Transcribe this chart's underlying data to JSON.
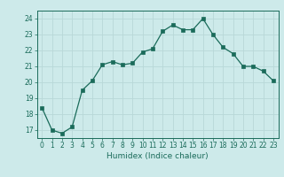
{
  "x": [
    0,
    1,
    2,
    3,
    4,
    5,
    6,
    7,
    8,
    9,
    10,
    11,
    12,
    13,
    14,
    15,
    16,
    17,
    18,
    19,
    20,
    21,
    22,
    23
  ],
  "y": [
    18.4,
    17.0,
    16.8,
    17.2,
    19.5,
    20.1,
    21.1,
    21.3,
    21.1,
    21.2,
    21.9,
    22.1,
    23.2,
    23.6,
    23.3,
    23.3,
    24.0,
    23.0,
    22.2,
    21.8,
    21.0,
    21.0,
    20.7,
    20.1
  ],
  "xlabel": "Humidex (Indice chaleur)",
  "ylim": [
    16.5,
    24.5
  ],
  "xlim": [
    -0.5,
    23.5
  ],
  "yticks": [
    17,
    18,
    19,
    20,
    21,
    22,
    23,
    24
  ],
  "xticks": [
    0,
    1,
    2,
    3,
    4,
    5,
    6,
    7,
    8,
    9,
    10,
    11,
    12,
    13,
    14,
    15,
    16,
    17,
    18,
    19,
    20,
    21,
    22,
    23
  ],
  "line_color": "#1a6b5a",
  "marker_color": "#1a6b5a",
  "bg_color": "#cdeaea",
  "grid_color": "#b8d8d8",
  "label_color": "#1a6b5a",
  "tick_fontsize": 5.5,
  "xlabel_fontsize": 6.5
}
